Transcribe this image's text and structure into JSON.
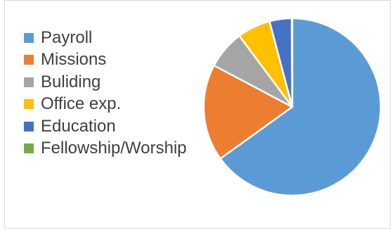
{
  "chart_data": {
    "type": "pie",
    "title": "",
    "categories": [
      "Payroll",
      "Missions",
      "Buliding",
      "Office exp.",
      "Education",
      "Fellowship/Worship"
    ],
    "values": [
      64.5,
      17.5,
      7.0,
      6.0,
      4.0,
      0.1
    ],
    "colors": [
      "#5b9bd5",
      "#ed7d31",
      "#a5a5a5",
      "#ffc000",
      "#4472c4",
      "#70ad47"
    ],
    "start_angle_deg": 0,
    "direction": "clockwise",
    "legend_position": "left"
  }
}
